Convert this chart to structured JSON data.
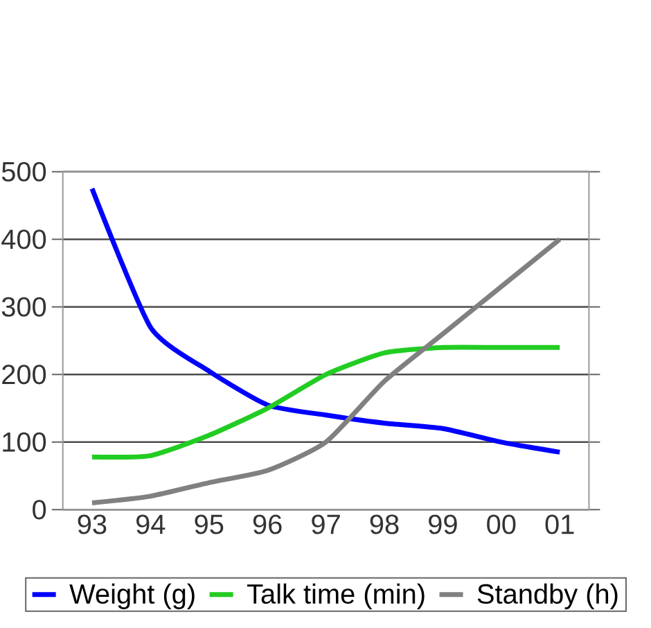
{
  "chart_data": {
    "type": "line",
    "categories": [
      "93",
      "94",
      "95",
      "96",
      "97",
      "98",
      "99",
      "00",
      "01"
    ],
    "series": [
      {
        "name": "Weight (g)",
        "color": "#0000ff",
        "values": [
          475,
          270,
          205,
          155,
          140,
          128,
          120,
          100,
          85
        ]
      },
      {
        "name": "Talk time (min)",
        "color": "#22cc22",
        "values": [
          78,
          80,
          110,
          150,
          200,
          232,
          240,
          240,
          240
        ]
      },
      {
        "name": "Standby (h)",
        "color": "#808080",
        "values": [
          10,
          20,
          40,
          58,
          100,
          190,
          260,
          330,
          400
        ]
      }
    ],
    "ylim": [
      0,
      500
    ],
    "yticks": [
      0,
      100,
      200,
      300,
      400,
      500
    ],
    "grid": "y",
    "legend": "bottom",
    "marker": "none",
    "line_style": "solid"
  }
}
